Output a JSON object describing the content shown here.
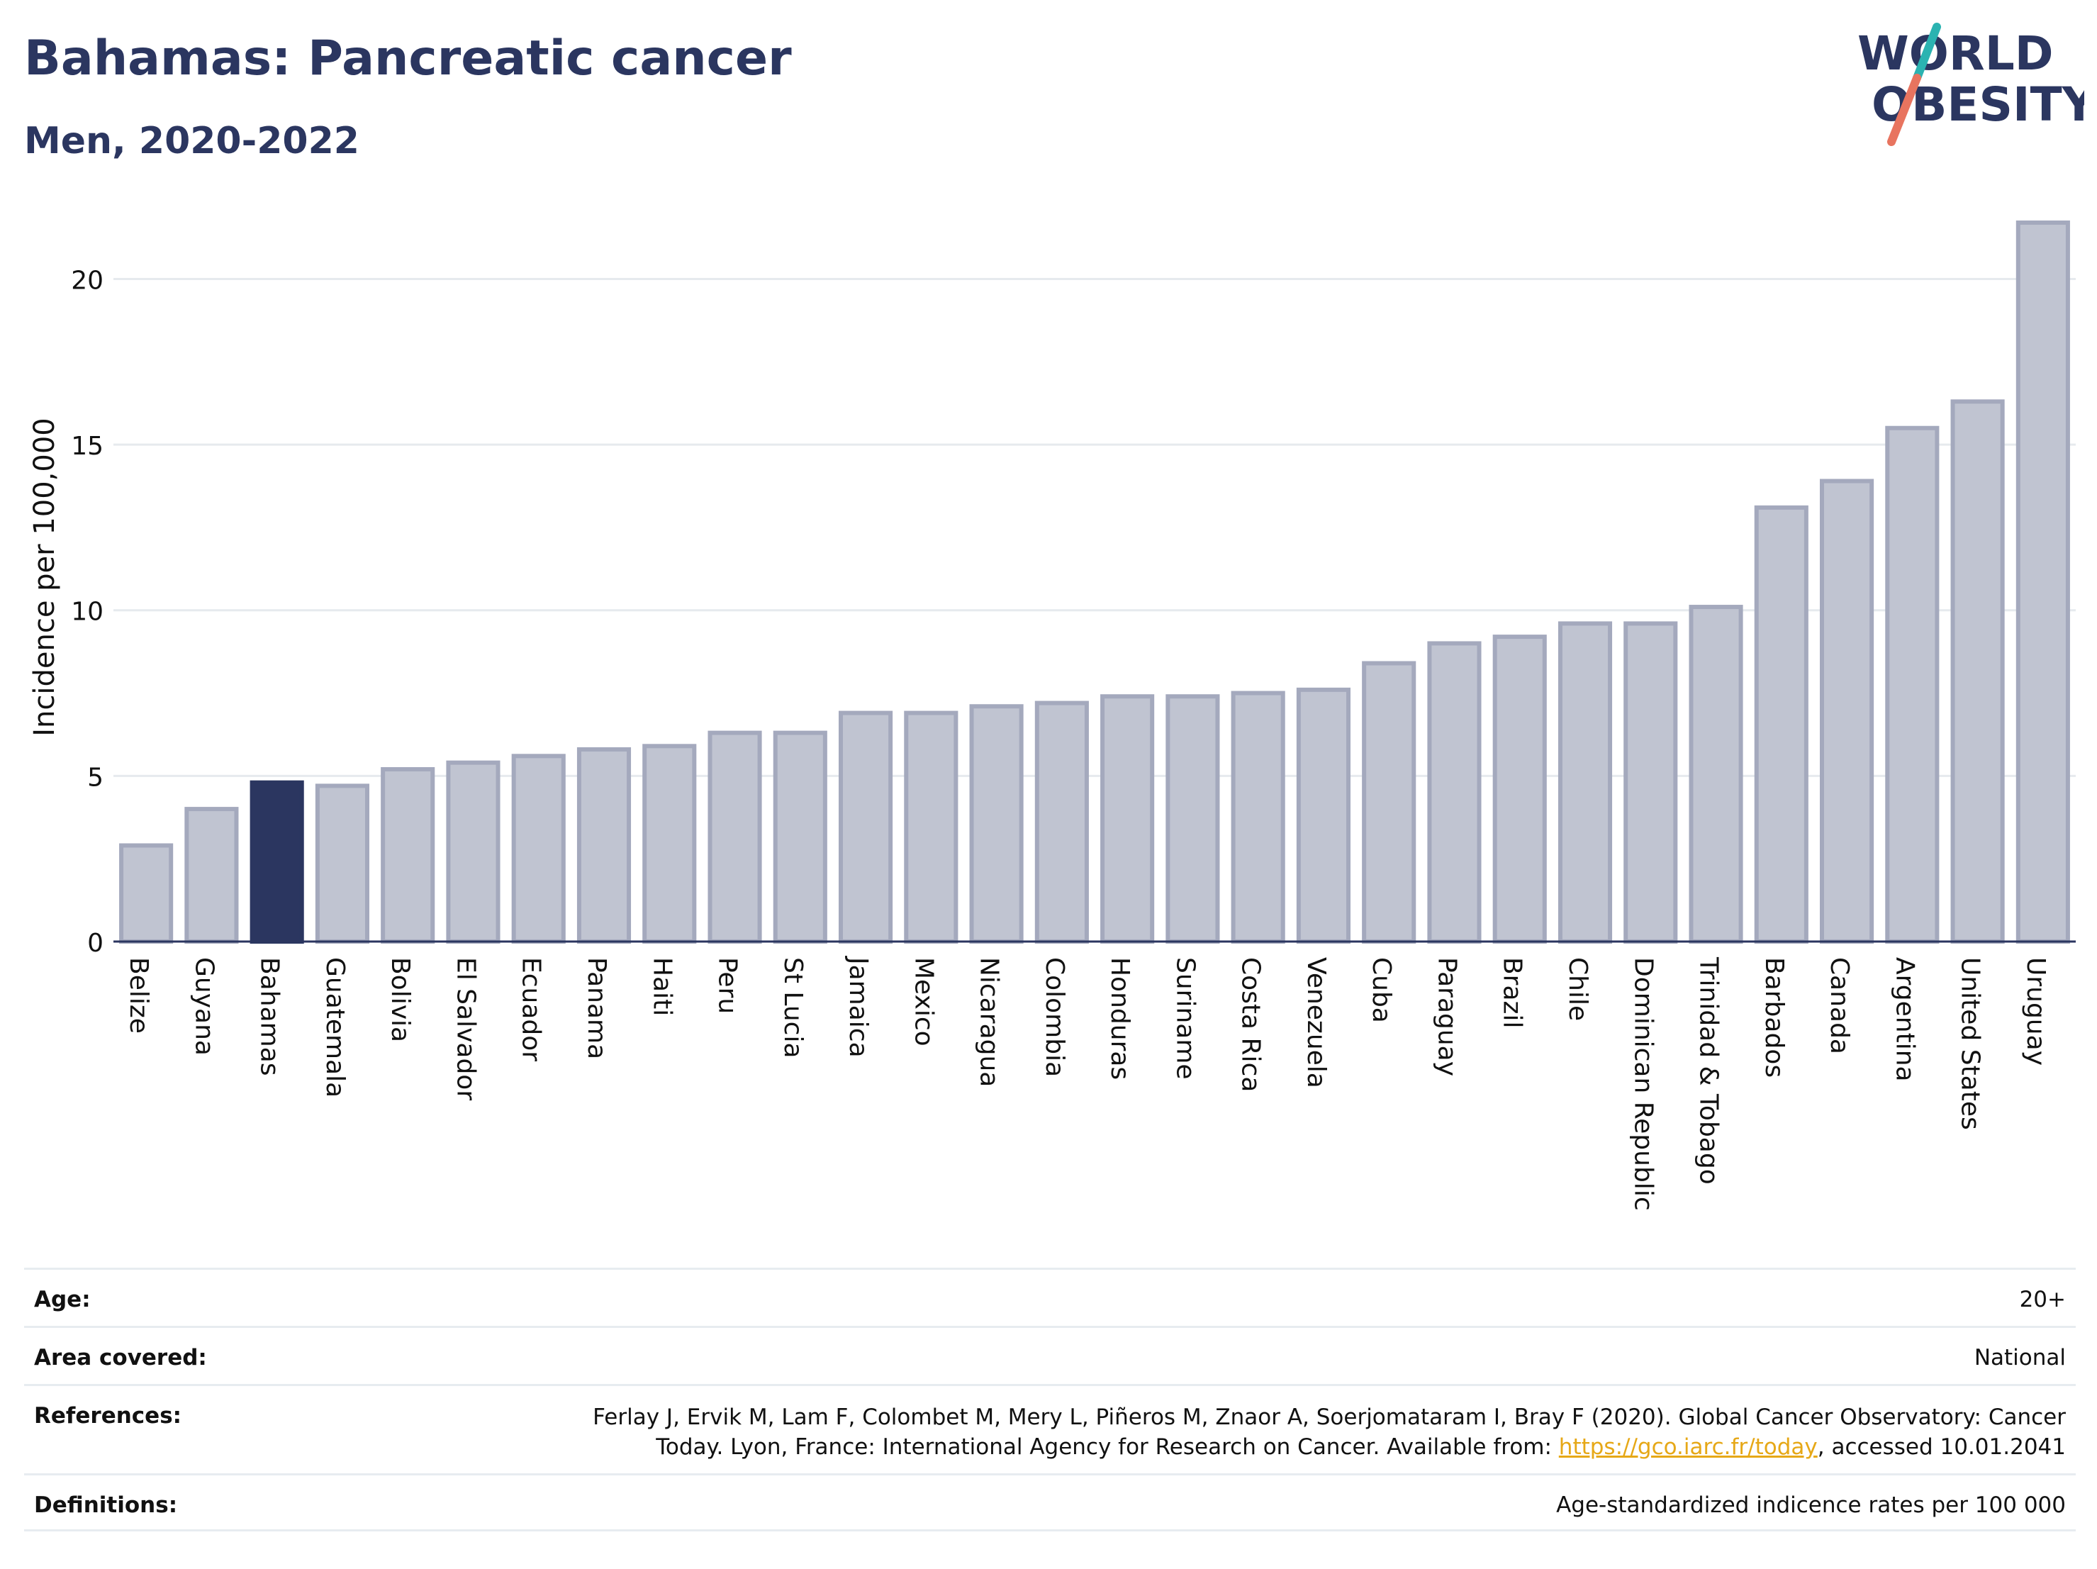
{
  "header": {
    "title": "Bahamas: Pancreatic cancer",
    "subtitle": "Men, 2020-2022"
  },
  "logo": {
    "line1": "WORLD",
    "line2": "OBESITY",
    "colors": {
      "text": "#2b3660",
      "slash_top": "#2bb3b1",
      "slash_bottom": "#e8745f"
    }
  },
  "chart_data": {
    "type": "bar",
    "ylabel": "Incidence per 100,000",
    "xlabel": "",
    "ylim": [
      0,
      22
    ],
    "yticks": [
      0,
      5,
      10,
      15,
      20
    ],
    "grid": true,
    "highlight": "Bahamas",
    "colors": {
      "bar": "#c0c4d1",
      "bar_border": "#a4a9bd",
      "highlight": "#2b3660",
      "grid": "#e6eaee",
      "axis": "#2b3660"
    },
    "categories": [
      "Belize",
      "Guyana",
      "Bahamas",
      "Guatemala",
      "Bolivia",
      "El Salvador",
      "Ecuador",
      "Panama",
      "Haiti",
      "Peru",
      "St Lucia",
      "Jamaica",
      "Mexico",
      "Nicaragua",
      "Colombia",
      "Honduras",
      "Suriname",
      "Costa Rica",
      "Venezuela",
      "Cuba",
      "Paraguay",
      "Brazil",
      "Chile",
      "Dominican Republic",
      "Trinidad & Tobago",
      "Barbados",
      "Canada",
      "Argentina",
      "United States",
      "Uruguay"
    ],
    "values": [
      2.9,
      4.0,
      4.8,
      4.7,
      5.2,
      5.4,
      5.6,
      5.8,
      5.9,
      6.3,
      6.3,
      6.9,
      6.9,
      7.1,
      7.2,
      7.4,
      7.4,
      7.5,
      7.6,
      8.4,
      9.0,
      9.2,
      9.6,
      9.6,
      10.1,
      13.1,
      13.9,
      15.5,
      16.3,
      21.7
    ]
  },
  "info": {
    "age_label": "Age:",
    "age_value": "20+",
    "area_label": "Area covered:",
    "area_value": "National",
    "references_label": "References:",
    "references_text": "Ferlay J, Ervik M, Lam F, Colombet M, Mery L, Piñeros M, Znaor A, Soerjomataram I, Bray F (2020). Global Cancer Observatory: Cancer Today. Lyon, France: International Agency for Research on Cancer. Available from: ",
    "references_link": "https://gco.iarc.fr/today",
    "references_suffix": ", accessed 10.01.2041",
    "definitions_label": "Definitions:",
    "definitions_value": "Age-standardized indicence rates per 100 000"
  }
}
